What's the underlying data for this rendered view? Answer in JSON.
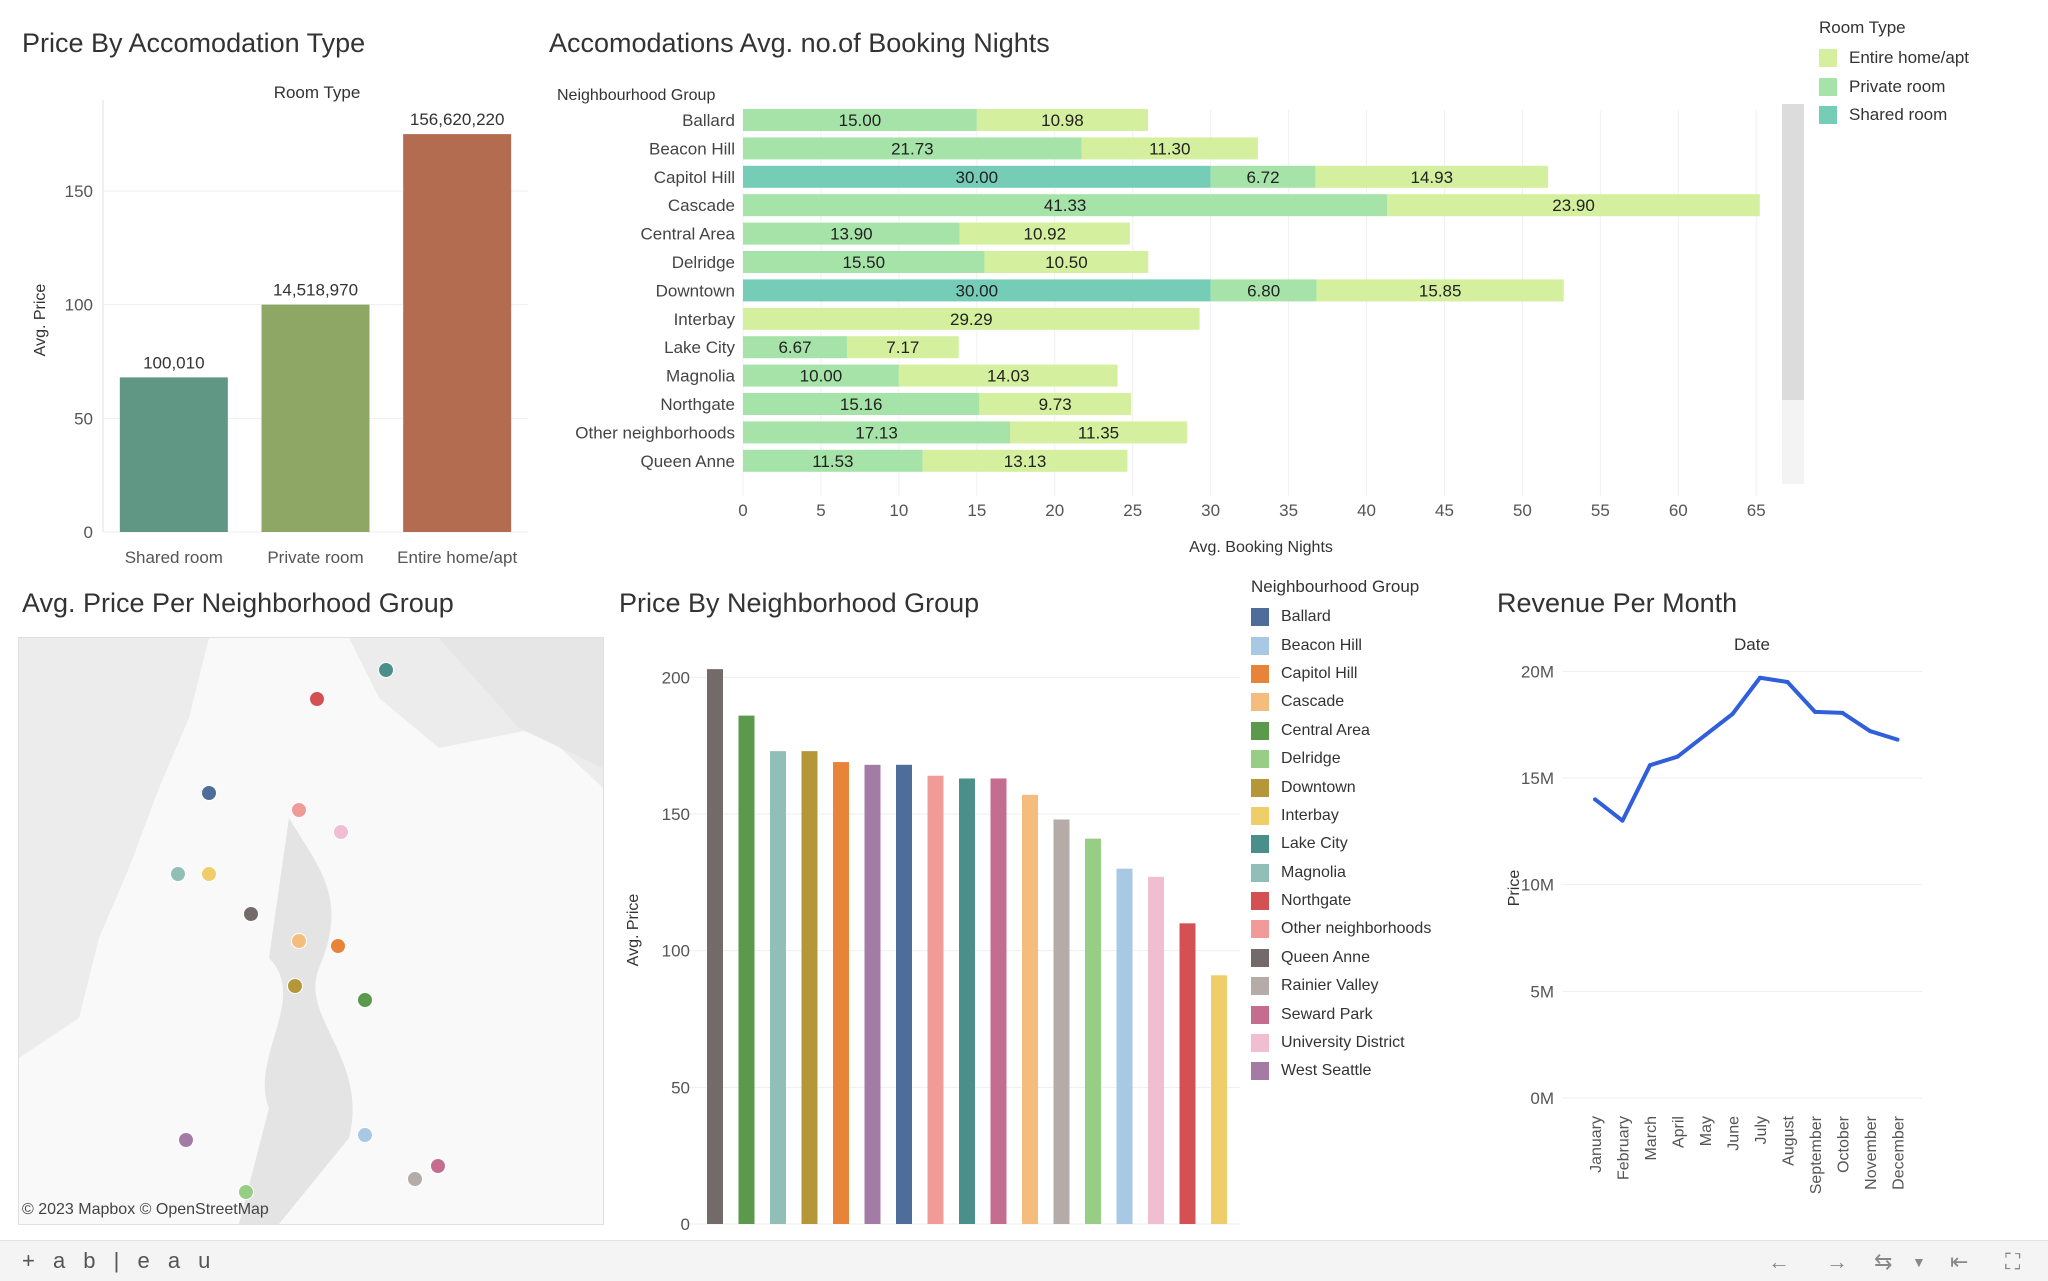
{
  "dashboard": {
    "panels": {
      "room_type_price": "Price By Accomodation Type",
      "booking_nights": "Accomodations Avg. no.of Booking Nights",
      "map": "Avg. Price Per Neighborhood Group",
      "neighborhood_price": "Price By Neighborhood Group",
      "revenue": "Revenue Per Month"
    },
    "map_attribution": "© 2023 Mapbox  © OpenStreetMap",
    "toolbar": {
      "logo": "+ a b | e a u"
    }
  },
  "legends": {
    "room_type": {
      "title": "Room Type",
      "items": [
        {
          "label": "Entire home/apt",
          "color": "#d4ef9d"
        },
        {
          "label": "Private room",
          "color": "#a6e3a8"
        },
        {
          "label": "Shared room",
          "color": "#75cdb8"
        }
      ]
    },
    "neighbourhood": {
      "title": "Neighbourhood Group",
      "items": [
        {
          "label": "Ballard",
          "color": "#4e6d9b"
        },
        {
          "label": "Beacon Hill",
          "color": "#a8c8e3"
        },
        {
          "label": "Capitol Hill",
          "color": "#e8833a"
        },
        {
          "label": "Cascade",
          "color": "#f5bd7d"
        },
        {
          "label": "Central Area",
          "color": "#5b9a4d"
        },
        {
          "label": "Delridge",
          "color": "#98cd85"
        },
        {
          "label": "Downtown",
          "color": "#b5973a"
        },
        {
          "label": "Interbay",
          "color": "#efcd6b"
        },
        {
          "label": "Lake City",
          "color": "#4b8f8b"
        },
        {
          "label": "Magnolia",
          "color": "#91bfb8"
        },
        {
          "label": "Northgate",
          "color": "#d45153"
        },
        {
          "label": "Other neighborhoods",
          "color": "#f19b98"
        },
        {
          "label": "Queen Anne",
          "color": "#736b69"
        },
        {
          "label": "Rainier Valley",
          "color": "#b5aca9"
        },
        {
          "label": "Seward Park",
          "color": "#c56d8f"
        },
        {
          "label": "University District",
          "color": "#f1bed1"
        },
        {
          "label": "West Seattle",
          "color": "#a47ba4"
        }
      ]
    }
  },
  "chart_data": [
    {
      "id": "room_type_price",
      "type": "bar",
      "title": "Price By Accomodation Type",
      "header": "Room Type",
      "ylabel": "Avg. Price",
      "categories": [
        "Shared room",
        "Private room",
        "Entire home/apt"
      ],
      "values": [
        68,
        100,
        175
      ],
      "data_labels": [
        "100,010",
        "14,518,970",
        "156,620,220"
      ],
      "colors": [
        "#5f9784",
        "#8fa765",
        "#b36c50"
      ],
      "ylim": [
        0,
        190
      ],
      "yticks": [
        0,
        50,
        100,
        150
      ],
      "grid": true
    },
    {
      "id": "booking_nights",
      "type": "bar",
      "orientation": "horizontal",
      "stacked": true,
      "title": "Accomodations Avg. no.of Booking Nights",
      "row_header": "Neighbourhood Group",
      "xlabel": "Avg. Booking Nights",
      "xlim": [
        0,
        68
      ],
      "xticks": [
        0,
        5,
        10,
        15,
        20,
        25,
        30,
        35,
        40,
        45,
        50,
        55,
        60,
        65
      ],
      "series_order": [
        "Shared room",
        "Private room",
        "Entire home/apt"
      ],
      "rows": [
        {
          "label": "Ballard",
          "shared": null,
          "private": 15.0,
          "entire": 10.98
        },
        {
          "label": "Beacon Hill",
          "shared": null,
          "private": 21.73,
          "entire": 11.3
        },
        {
          "label": "Capitol Hill",
          "shared": 30.0,
          "private": 6.72,
          "entire": 14.93
        },
        {
          "label": "Cascade",
          "shared": null,
          "private": 41.33,
          "entire": 23.9
        },
        {
          "label": "Central Area",
          "shared": null,
          "private": 13.9,
          "entire": 10.92
        },
        {
          "label": "Delridge",
          "shared": null,
          "private": 15.5,
          "entire": 10.5
        },
        {
          "label": "Downtown",
          "shared": 30.0,
          "private": 6.8,
          "entire": 15.85
        },
        {
          "label": "Interbay",
          "shared": null,
          "private": null,
          "entire": 29.29
        },
        {
          "label": "Lake City",
          "shared": null,
          "private": 6.67,
          "entire": 7.17
        },
        {
          "label": "Magnolia",
          "shared": null,
          "private": 10.0,
          "entire": 14.03
        },
        {
          "label": "Northgate",
          "shared": null,
          "private": 15.16,
          "entire": 9.73
        },
        {
          "label": "Other neighborhoods",
          "shared": null,
          "private": 17.13,
          "entire": 11.35
        },
        {
          "label": "Queen Anne",
          "shared": null,
          "private": 11.53,
          "entire": 13.13
        }
      ],
      "grid": true
    },
    {
      "id": "neighborhood_price",
      "type": "bar",
      "title": "Price By Neighborhood Group",
      "ylabel": "Avg. Price",
      "ylim": [
        0,
        210
      ],
      "yticks": [
        0,
        50,
        100,
        150,
        200
      ],
      "categories": [
        "Queen Anne",
        "Central Area",
        "Magnolia",
        "Downtown",
        "Capitol Hill",
        "West Seattle",
        "Ballard",
        "Other neighborhoods",
        "Lake City",
        "Seward Park",
        "Cascade",
        "Rainier Valley",
        "Delridge",
        "Beacon Hill",
        "University District",
        "Northgate",
        "Interbay"
      ],
      "values": [
        203,
        186,
        173,
        173,
        169,
        168,
        168,
        164,
        163,
        163,
        157,
        148,
        141,
        130,
        127,
        110,
        91
      ],
      "grid": true
    },
    {
      "id": "revenue",
      "type": "line",
      "title": "Revenue Per Month",
      "header": "Date",
      "ylabel": "Price",
      "categories": [
        "January",
        "February",
        "March",
        "April",
        "May",
        "June",
        "July",
        "August",
        "September",
        "October",
        "November",
        "December"
      ],
      "values": [
        14.0,
        13.0,
        15.6,
        16.0,
        17.0,
        18.0,
        19.7,
        19.5,
        18.1,
        18.05,
        17.2,
        16.8
      ],
      "unit": "M",
      "ylim": [
        0,
        21
      ],
      "ytick_labels": [
        "0M",
        "5M",
        "10M",
        "15M",
        "20M"
      ],
      "yticks": [
        0,
        5,
        10,
        15,
        20
      ],
      "color": "#2f5fdb",
      "grid": true
    }
  ]
}
